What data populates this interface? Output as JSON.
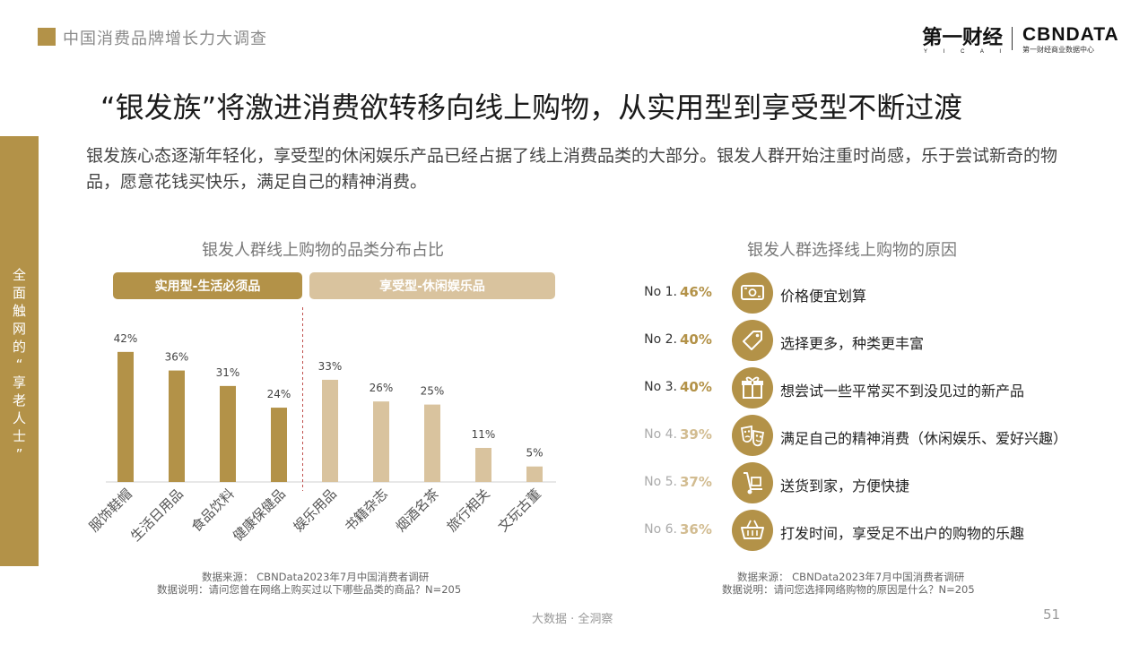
{
  "header": {
    "title": "中国消费品牌增长力大调查"
  },
  "logos": {
    "yicai_main": "第一财经",
    "yicai_sub": "Y I C A I",
    "cbn_main": "CBNDATA",
    "cbn_sub": "第一财经商业数据中心"
  },
  "slide": {
    "title": "“银发族”将激进消费欲转移向线上购物，从实用型到享受型不断过渡",
    "body": "银发族心态逐渐年轻化，享受型的休闲娱乐产品已经占据了线上消费品类的大部分。银发人群开始注重时尚感，乐于尝试新奇的物品，愿意花钱买快乐，满足自己的精神消费。"
  },
  "side_tab": {
    "chars": [
      "全",
      "面",
      "触",
      "网",
      "的",
      "“",
      "享",
      "老",
      "人",
      "士",
      "”"
    ]
  },
  "chart_data": {
    "type": "bar",
    "title": "银发人群线上购物的品类分布占比",
    "categories": [
      "服饰鞋帽",
      "生活日用品",
      "食品饮料",
      "健康保健品",
      "娱乐用品",
      "书籍杂志",
      "烟酒名茶",
      "旅行相关",
      "文玩古董"
    ],
    "values": [
      42,
      36,
      31,
      24,
      33,
      26,
      25,
      11,
      5
    ],
    "value_labels": [
      "42%",
      "36%",
      "31%",
      "24%",
      "33%",
      "26%",
      "25%",
      "11%",
      "5%"
    ],
    "groups": [
      {
        "name": "实用型-生活必须品",
        "count": 4,
        "color": "#b39248"
      },
      {
        "name": "享受型-休闲娱乐品",
        "count": 5,
        "color": "#d9c39e"
      }
    ],
    "unit": "%",
    "ylim": [
      0,
      50
    ],
    "grid": false,
    "legend": "top"
  },
  "left_source": {
    "line1": "数据来源：  CBNData2023年7月中国消费者调研",
    "line2": "数据说明：请问您曾在网络上购买过以下哪些品类的商品？N=205"
  },
  "reasons": {
    "title": "银发人群选择线上购物的原因",
    "items": [
      {
        "rank": "No 1.",
        "pct": "46%",
        "text": "价格便宜划算",
        "icon": "money-icon",
        "rank_color": "#333333",
        "pct_color": "#b39248"
      },
      {
        "rank": "No 2.",
        "pct": "40%",
        "text": "选择更多，种类更丰富",
        "icon": "tag-icon",
        "rank_color": "#333333",
        "pct_color": "#b39248"
      },
      {
        "rank": "No 3.",
        "pct": "40%",
        "text": "想尝试一些平常买不到没见过的新产品",
        "icon": "gift-icon",
        "rank_color": "#333333",
        "pct_color": "#b39248"
      },
      {
        "rank": "No 4.",
        "pct": "39%",
        "text": "满足自己的精神消费（休闲娱乐、爱好兴趣）",
        "icon": "masks-icon",
        "rank_color": "#aaaaaa",
        "pct_color": "#d2bc91"
      },
      {
        "rank": "No 5.",
        "pct": "37%",
        "text": "送货到家，方便快捷",
        "icon": "hand-truck-icon",
        "rank_color": "#aaaaaa",
        "pct_color": "#d2bc91"
      },
      {
        "rank": "No 6.",
        "pct": "36%",
        "text": "打发时间，享受足不出户的购物的乐趣",
        "icon": "basket-icon",
        "rank_color": "#aaaaaa",
        "pct_color": "#d2bc91"
      }
    ]
  },
  "right_source": {
    "line1": "数据来源：  CBNData2023年7月中国消费者调研",
    "line2": "数据说明：请问您选择网络购物的原因是什么？N=205"
  },
  "footer": {
    "slogan": "大数据 · 全洞察",
    "page_number": "51"
  }
}
